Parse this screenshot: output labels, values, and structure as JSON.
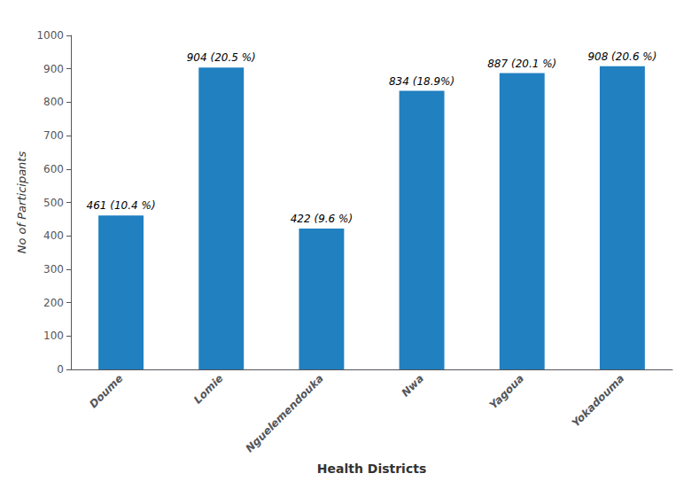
{
  "chart_data": {
    "type": "bar",
    "categories": [
      "Doume",
      "Lomie",
      "Nguelemendouka",
      "Nwa",
      "Yagoua",
      "Yokadouma"
    ],
    "values": [
      461,
      904,
      422,
      834,
      887,
      908
    ],
    "value_labels": [
      "461 (10.4 %)",
      "904 (20.5 %)",
      "422 (9.6 %)",
      "834 (18.9%)",
      "887 (20.1 %)",
      "908 (20.6 %)"
    ],
    "data_labels": true,
    "color": "#2080C0",
    "xlabel": "Health Districts",
    "ylabel": "No of Participants",
    "ylim": [
      0,
      1000
    ],
    "yticks": [
      0,
      100,
      200,
      300,
      400,
      500,
      600,
      700,
      800,
      900,
      1000
    ],
    "grid": false
  }
}
